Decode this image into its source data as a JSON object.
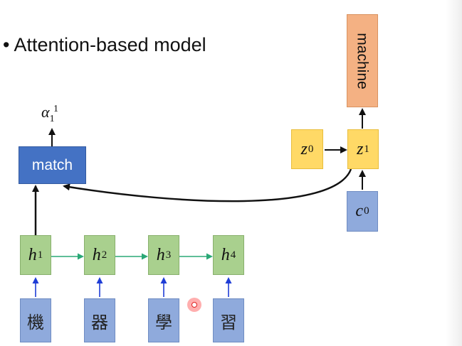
{
  "title": {
    "bullet": "•",
    "text": "Attention-based model"
  },
  "encoder": {
    "hidden": [
      {
        "var": "h",
        "sup": "1"
      },
      {
        "var": "h",
        "sup": "2"
      },
      {
        "var": "h",
        "sup": "3"
      },
      {
        "var": "h",
        "sup": "4"
      }
    ],
    "inputs": [
      "機",
      "器",
      "學",
      "習"
    ]
  },
  "match": {
    "label": "match",
    "output": {
      "var": "α",
      "sub": "1",
      "sup": "1"
    }
  },
  "decoder": {
    "z0": {
      "var": "z",
      "sup": "0"
    },
    "z1": {
      "var": "z",
      "sup": "1"
    },
    "c0": {
      "var": "c",
      "sup": "0"
    },
    "output": "machine"
  },
  "colors": {
    "hidden": "#a9d08e",
    "input": "#8faadc",
    "match": "#4472c4",
    "state": "#ffd966",
    "output": "#f4b183",
    "input_arrow": "#1f3dd6",
    "chain_arrow": "#2aa876",
    "main_arrow": "#111111"
  }
}
